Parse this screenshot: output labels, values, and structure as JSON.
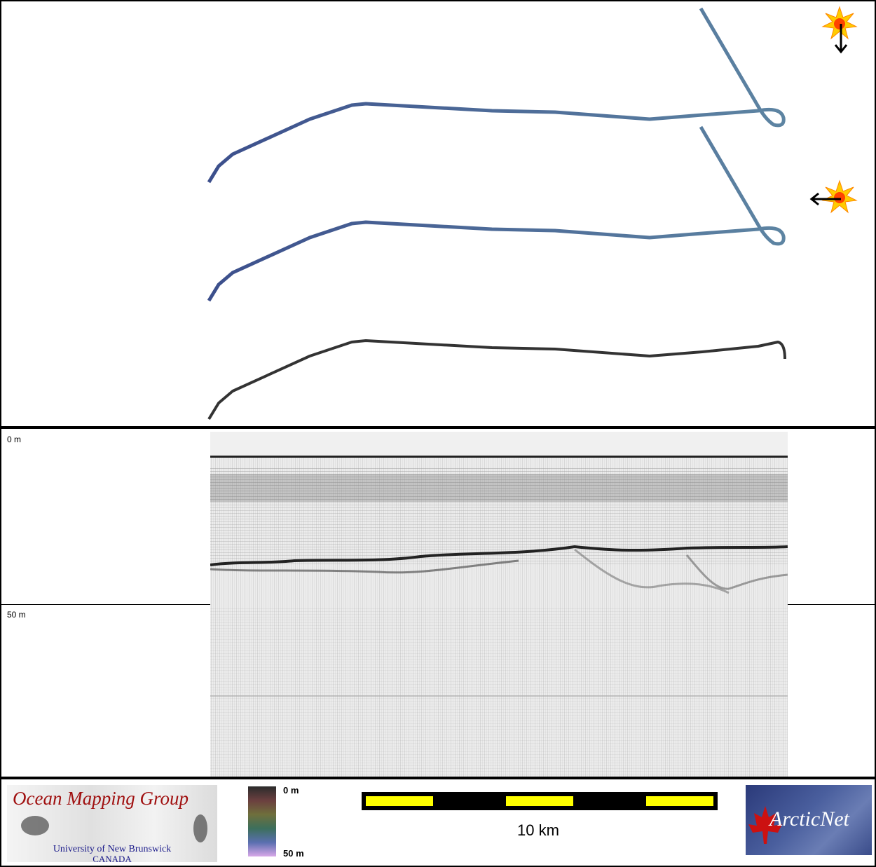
{
  "profile": {
    "depth_top_label": "0 m",
    "depth_mid_label": "50 m"
  },
  "footer": {
    "omg_logo": {
      "title": "Ocean Mapping Group",
      "line1": "University of New Brunswick",
      "line2": "CANADA"
    },
    "colorbar": {
      "top_label": "0 m",
      "bottom_label": "50 m"
    },
    "scalebar": {
      "label": "10 km",
      "colors": {
        "fill": "#ffff00",
        "stripe": "#000000"
      }
    },
    "arcticnet_logo": {
      "text": "ArcticNet"
    }
  },
  "sun_icons": [
    {
      "name": "sun-icon",
      "arrow": "down"
    },
    {
      "name": "sun-icon",
      "arrow": "left"
    }
  ],
  "colors": {
    "track_blue": "#4a6a98",
    "track_gray": "#2a2a2a",
    "omg_red": "#a01010",
    "omg_blue": "#1a1a8a"
  }
}
